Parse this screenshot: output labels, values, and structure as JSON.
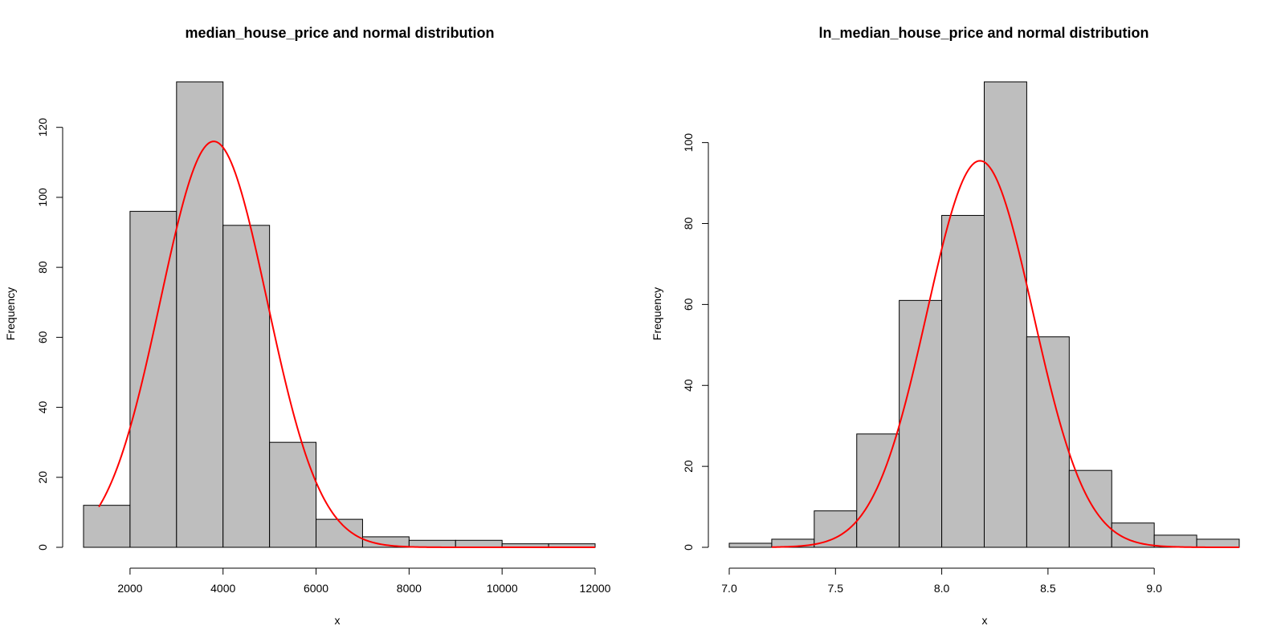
{
  "chart_data": [
    {
      "type": "bar",
      "title": "median_house_price and normal distribution",
      "xlabel": "x",
      "ylabel": "Frequency",
      "bin_edges": [
        1000,
        2000,
        3000,
        4000,
        5000,
        6000,
        7000,
        8000,
        9000,
        10000,
        11000,
        12000
      ],
      "values": [
        12,
        96,
        133,
        92,
        30,
        8,
        3,
        2,
        2,
        1,
        1
      ],
      "xlim": [
        1000,
        12000
      ],
      "ylim": [
        0,
        133
      ],
      "x_ticks": [
        2000,
        4000,
        6000,
        8000,
        10000,
        12000
      ],
      "x_tick_labels": [
        "2000",
        "4000",
        "6000",
        "8000",
        "10000",
        "12000"
      ],
      "y_ticks": [
        0,
        20,
        40,
        60,
        80,
        100,
        120
      ],
      "y_tick_labels": [
        "0",
        "20",
        "40",
        "60",
        "80",
        "100",
        "120"
      ],
      "bar_color": "#bebebe",
      "curve": {
        "type": "normal",
        "mean": 3800,
        "sd": 1150,
        "peak": 116,
        "x_from": 1330,
        "x_to": 12000,
        "color": "#ff0000"
      }
    },
    {
      "type": "bar",
      "title": "ln_median_house_price and normal distribution",
      "xlabel": "x",
      "ylabel": "Frequency",
      "bin_edges": [
        7.0,
        7.2,
        7.4,
        7.6,
        7.8,
        8.0,
        8.2,
        8.4,
        8.6,
        8.8,
        9.0,
        9.2,
        9.4
      ],
      "values": [
        1,
        2,
        9,
        28,
        61,
        82,
        115,
        52,
        19,
        6,
        3,
        2
      ],
      "xlim": [
        7.0,
        9.4
      ],
      "ylim": [
        0,
        115
      ],
      "x_ticks": [
        7.0,
        7.5,
        8.0,
        8.5,
        9.0
      ],
      "x_tick_labels": [
        "7.0",
        "7.5",
        "8.0",
        "8.5",
        "9.0"
      ],
      "y_ticks": [
        0,
        20,
        40,
        60,
        80,
        100
      ],
      "y_tick_labels": [
        "0",
        "20",
        "40",
        "60",
        "80",
        "100"
      ],
      "bar_color": "#bebebe",
      "curve": {
        "type": "normal",
        "mean": 8.18,
        "sd": 0.25,
        "peak": 95.5,
        "x_from": 7.2,
        "x_to": 9.4,
        "color": "#ff0000"
      }
    }
  ]
}
